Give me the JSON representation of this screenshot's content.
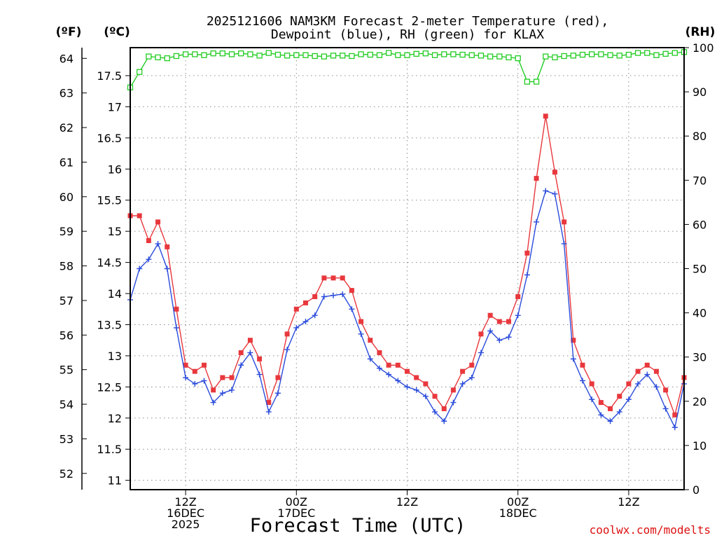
{
  "title": {
    "line1": "2025121606 NAM3KM Forecast 2-meter Temperature (red),",
    "line2": "Dewpoint (blue), RH (green) for KLAX"
  },
  "units": {
    "fahrenheit": "(ºF)",
    "celsius": "(ºC)",
    "rh": "(RH)"
  },
  "credit": "coolwx.com/modelts",
  "colors": {
    "temperature": "#e8383d",
    "dewpoint": "#2a4bdb",
    "rh": "#22cc22"
  },
  "chart_data": {
    "type": "line",
    "title": "2025121606 NAM3KM Forecast 2-meter Temperature (red), Dewpoint (blue), RH (green) for KLAX",
    "xlabel": "Forecast Time (UTC)",
    "x_hours": [
      0,
      1,
      2,
      3,
      4,
      5,
      6,
      7,
      8,
      9,
      10,
      11,
      12,
      13,
      14,
      15,
      16,
      17,
      18,
      19,
      20,
      21,
      22,
      23,
      24,
      25,
      26,
      27,
      28,
      29,
      30,
      31,
      32,
      33,
      34,
      35,
      36,
      37,
      38,
      39,
      40,
      41,
      42,
      43,
      44,
      45,
      46,
      47,
      48,
      49,
      50,
      51,
      52,
      53,
      54,
      55,
      56,
      57,
      58,
      59,
      60
    ],
    "x_range_hours": [
      0,
      60
    ],
    "x_ticks": [
      {
        "hour": 6,
        "lines": [
          "12Z",
          "16DEC",
          "2025"
        ]
      },
      {
        "hour": 18,
        "lines": [
          "00Z",
          "17DEC"
        ]
      },
      {
        "hour": 30,
        "lines": [
          "12Z"
        ]
      },
      {
        "hour": 42,
        "lines": [
          "00Z",
          "18DEC"
        ]
      },
      {
        "hour": 54,
        "lines": [
          "12Z"
        ]
      }
    ],
    "left_axis_celsius": {
      "range": [
        10.85,
        17.95
      ],
      "ticks": [
        11,
        11.5,
        12,
        12.5,
        13,
        13.5,
        14,
        14.5,
        15,
        15.5,
        16,
        16.5,
        17,
        17.5
      ]
    },
    "left_axis_fahrenheit": {
      "ticks": [
        52,
        53,
        54,
        55,
        56,
        57,
        58,
        59,
        60,
        61,
        62,
        63,
        64
      ]
    },
    "right_axis_rh": {
      "range": [
        0,
        100
      ],
      "ticks": [
        0,
        10,
        20,
        30,
        40,
        50,
        60,
        70,
        80,
        90,
        100
      ]
    },
    "series": [
      {
        "name": "Temperature",
        "units": "°C",
        "axis": "celsius",
        "marker": "filled-square",
        "values": [
          15.25,
          15.25,
          14.85,
          15.15,
          14.75,
          13.75,
          12.85,
          12.75,
          12.85,
          12.45,
          12.65,
          12.65,
          13.05,
          13.25,
          12.95,
          12.25,
          12.65,
          13.35,
          13.75,
          13.85,
          13.95,
          14.25,
          14.25,
          14.25,
          14.05,
          13.55,
          13.25,
          13.05,
          12.85,
          12.85,
          12.75,
          12.65,
          12.55,
          12.35,
          12.15,
          12.45,
          12.75,
          12.85,
          13.35,
          13.65,
          13.55,
          13.55,
          13.95,
          14.65,
          15.85,
          16.85,
          15.95,
          15.15,
          13.25,
          12.85,
          12.55,
          12.25,
          12.15,
          12.35,
          12.55,
          12.75,
          12.85,
          12.75,
          12.45,
          12.05,
          12.65
        ]
      },
      {
        "name": "Dewpoint",
        "units": "°C",
        "axis": "celsius",
        "marker": "plus",
        "values": [
          13.9,
          14.4,
          14.55,
          14.8,
          14.4,
          13.45,
          12.65,
          12.55,
          12.6,
          12.25,
          12.4,
          12.45,
          12.85,
          13.05,
          12.7,
          12.1,
          12.4,
          13.1,
          13.45,
          13.55,
          13.65,
          13.95,
          13.97,
          13.99,
          13.75,
          13.35,
          12.95,
          12.8,
          12.7,
          12.6,
          12.5,
          12.45,
          12.35,
          12.1,
          11.95,
          12.25,
          12.55,
          12.65,
          13.05,
          13.4,
          13.25,
          13.3,
          13.65,
          14.3,
          15.15,
          15.65,
          15.6,
          14.8,
          12.95,
          12.6,
          12.3,
          12.05,
          11.95,
          12.1,
          12.3,
          12.55,
          12.7,
          12.5,
          12.15,
          11.85,
          12.55
        ]
      },
      {
        "name": "RH",
        "units": "%",
        "axis": "rh",
        "marker": "open-square",
        "values": [
          91,
          94.5,
          98,
          97.8,
          97.6,
          98.1,
          98.5,
          98.5,
          98.3,
          98.7,
          98.7,
          98.5,
          98.7,
          98.5,
          98.2,
          98.8,
          98.4,
          98.2,
          98.3,
          98.3,
          98.1,
          98,
          98.2,
          98.2,
          98.1,
          98.5,
          98.4,
          98.3,
          98.8,
          98.3,
          98.3,
          98.6,
          98.7,
          98.3,
          98.5,
          98.5,
          98.4,
          98.3,
          98.2,
          98,
          98,
          97.8,
          97.6,
          92.3,
          92.3,
          98,
          97.8,
          98.1,
          98.2,
          98.4,
          98.5,
          98.5,
          98.3,
          98.2,
          98.4,
          98.8,
          98.8,
          98.3,
          98.6,
          98.8,
          99
        ]
      }
    ]
  }
}
